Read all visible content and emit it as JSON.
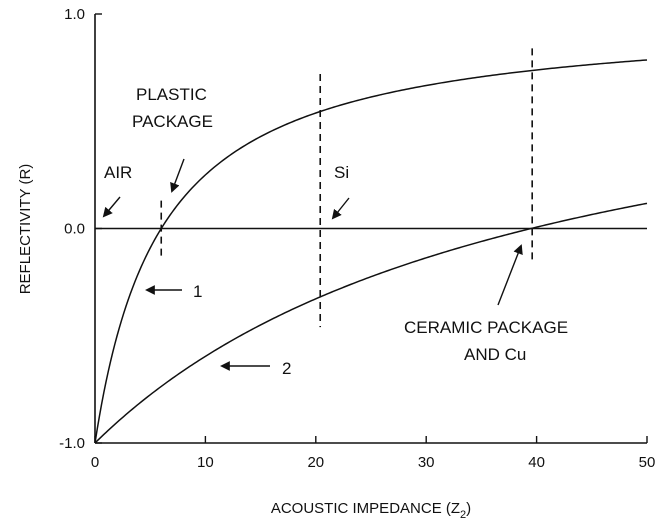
{
  "chart_data": {
    "type": "line",
    "xlabel": "ACOUSTIC IMPEDANCE (Z",
    "xlabel_sub": "2",
    "xlabel_close": ")",
    "ylabel": "REFLECTIVITY (R)",
    "xlim": [
      0,
      50
    ],
    "ylim": [
      -1.0,
      1.0
    ],
    "x_ticks": [
      0,
      10,
      20,
      30,
      40,
      50
    ],
    "x_tick_labels": [
      "0",
      "10",
      "20",
      "30",
      "40",
      "50"
    ],
    "y_ticks": [
      -1.0,
      0.0,
      1.0
    ],
    "y_tick_labels": [
      "-1.0",
      "0.0",
      "1.0"
    ],
    "grid": false,
    "reference_line_y": 0.0,
    "series": [
      {
        "name": "1",
        "reference_impedance": 6.0,
        "points": [
          [
            0,
            -1.0
          ],
          [
            1,
            -0.714
          ],
          [
            2,
            -0.5
          ],
          [
            3,
            -0.333
          ],
          [
            4,
            -0.2
          ],
          [
            5,
            -0.091
          ],
          [
            6,
            0.0
          ],
          [
            7,
            0.077
          ],
          [
            8,
            0.143
          ],
          [
            10,
            0.25
          ],
          [
            12,
            0.333
          ],
          [
            15,
            0.429
          ],
          [
            20,
            0.538
          ],
          [
            25,
            0.613
          ],
          [
            30,
            0.667
          ],
          [
            35,
            0.707
          ],
          [
            40,
            0.739
          ],
          [
            45,
            0.765
          ],
          [
            50,
            0.786
          ]
        ]
      },
      {
        "name": "2",
        "reference_impedance": 39.5,
        "points": [
          [
            0,
            -1.0
          ],
          [
            5,
            -0.775
          ],
          [
            10,
            -0.596
          ],
          [
            15,
            -0.449
          ],
          [
            20,
            -0.328
          ],
          [
            25,
            -0.225
          ],
          [
            30,
            -0.137
          ],
          [
            35,
            -0.06
          ],
          [
            39.5,
            0.0
          ],
          [
            45,
            0.065
          ],
          [
            50,
            0.117
          ]
        ]
      }
    ],
    "vertical_markers": [
      {
        "x": 6.0,
        "y_range": [
          -0.13,
          0.13
        ]
      },
      {
        "x": 20.4,
        "y_range": [
          -0.46,
          0.72
        ]
      },
      {
        "x": 39.6,
        "y_range": [
          -0.16,
          0.84
        ]
      }
    ],
    "annotations": {
      "air": "AIR",
      "plastic_line1": "PLASTIC",
      "plastic_line2": "PACKAGE",
      "si": "Si",
      "ceramic_line1": "CERAMIC PACKAGE",
      "ceramic_line2": "AND Cu",
      "curve1_label": "1",
      "curve2_label": "2"
    }
  }
}
